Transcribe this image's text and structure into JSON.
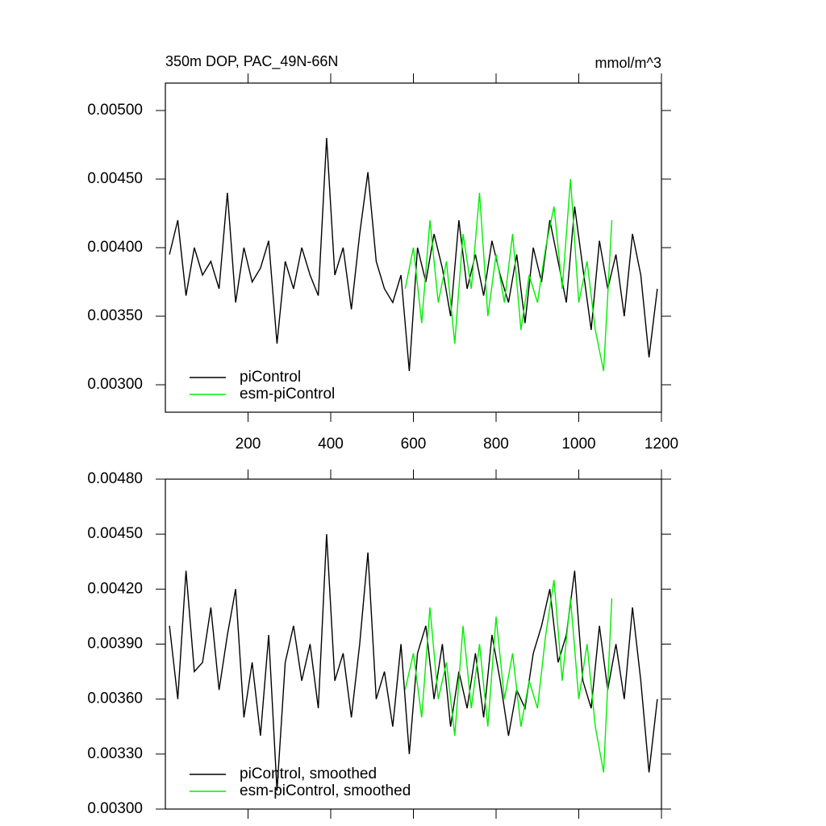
{
  "chart_data": [
    {
      "type": "line",
      "title": "350m DOP, PAC_49N-66N",
      "units": "mmol/m^3",
      "xlim": [
        0,
        1200
      ],
      "xticks": [
        200,
        400,
        600,
        800,
        1000,
        1200
      ],
      "ylim": [
        0.0028,
        0.0052
      ],
      "yticks": [
        {
          "value": 0.003,
          "label": "0.00300"
        },
        {
          "value": 0.0035,
          "label": "0.00350"
        },
        {
          "value": 0.004,
          "label": "0.00400"
        },
        {
          "value": 0.0045,
          "label": "0.00450"
        },
        {
          "value": 0.005,
          "label": "0.00500"
        }
      ],
      "legend": "lower left",
      "series": [
        {
          "name": "piControl",
          "color": "#000000",
          "x": [
            10,
            30,
            50,
            70,
            90,
            110,
            130,
            150,
            170,
            190,
            210,
            230,
            250,
            270,
            290,
            310,
            330,
            350,
            370,
            390,
            410,
            430,
            450,
            470,
            490,
            510,
            530,
            550,
            570,
            590,
            610,
            630,
            650,
            670,
            690,
            710,
            730,
            750,
            770,
            790,
            810,
            830,
            850,
            870,
            890,
            910,
            930,
            950,
            970,
            990,
            1010,
            1030,
            1050,
            1070,
            1090,
            1110,
            1130,
            1150,
            1170,
            1190
          ],
          "values": [
            0.00395,
            0.0042,
            0.00365,
            0.004,
            0.0038,
            0.0039,
            0.0037,
            0.0044,
            0.0036,
            0.004,
            0.00375,
            0.00385,
            0.00405,
            0.0033,
            0.0039,
            0.0037,
            0.004,
            0.0038,
            0.00365,
            0.0048,
            0.0038,
            0.004,
            0.00355,
            0.0041,
            0.00455,
            0.0039,
            0.0037,
            0.0036,
            0.0038,
            0.0031,
            0.004,
            0.00375,
            0.0041,
            0.00385,
            0.0035,
            0.0042,
            0.0037,
            0.00395,
            0.00365,
            0.00405,
            0.0038,
            0.0036,
            0.00395,
            0.00345,
            0.004,
            0.00375,
            0.0042,
            0.0039,
            0.0036,
            0.0043,
            0.00385,
            0.0034,
            0.00405,
            0.0037,
            0.00395,
            0.0035,
            0.0041,
            0.0038,
            0.0032,
            0.0037
          ]
        },
        {
          "name": "esm-piControl",
          "color": "#00ee00",
          "x": [
            580,
            600,
            620,
            640,
            660,
            680,
            700,
            720,
            740,
            760,
            780,
            800,
            820,
            840,
            860,
            880,
            900,
            920,
            940,
            960,
            980,
            1000,
            1020,
            1040,
            1060,
            1080
          ],
          "values": [
            0.0037,
            0.004,
            0.00345,
            0.0042,
            0.0036,
            0.0039,
            0.0033,
            0.0041,
            0.0037,
            0.0044,
            0.0035,
            0.00395,
            0.0036,
            0.0041,
            0.0034,
            0.0038,
            0.0036,
            0.004,
            0.0043,
            0.0037,
            0.0045,
            0.0036,
            0.0039,
            0.0034,
            0.0031,
            0.0042
          ]
        }
      ]
    },
    {
      "type": "line",
      "xlim": [
        0,
        1200
      ],
      "ylim": [
        0.003,
        0.0048
      ],
      "yticks": [
        {
          "value": 0.003,
          "label": "0.00300"
        },
        {
          "value": 0.0033,
          "label": "0.00330"
        },
        {
          "value": 0.0036,
          "label": "0.00360"
        },
        {
          "value": 0.0039,
          "label": "0.00390"
        },
        {
          "value": 0.0042,
          "label": "0.00420"
        },
        {
          "value": 0.0045,
          "label": "0.00450"
        },
        {
          "value": 0.0048,
          "label": "0.00480"
        }
      ],
      "legend": "lower left",
      "series": [
        {
          "name": "piControl, smoothed",
          "color": "#000000",
          "x": [
            10,
            30,
            50,
            70,
            90,
            110,
            130,
            150,
            170,
            190,
            210,
            230,
            250,
            270,
            290,
            310,
            330,
            350,
            370,
            390,
            410,
            430,
            450,
            470,
            490,
            510,
            530,
            550,
            570,
            590,
            610,
            630,
            650,
            670,
            690,
            710,
            730,
            750,
            770,
            790,
            810,
            830,
            850,
            870,
            890,
            910,
            930,
            950,
            970,
            990,
            1010,
            1030,
            1050,
            1070,
            1090,
            1110,
            1130,
            1150,
            1170,
            1190
          ],
          "values": [
            0.004,
            0.0036,
            0.0043,
            0.00375,
            0.0038,
            0.0041,
            0.00365,
            0.00395,
            0.0042,
            0.0035,
            0.0038,
            0.0034,
            0.00395,
            0.0031,
            0.0038,
            0.004,
            0.0037,
            0.0039,
            0.00355,
            0.0045,
            0.0037,
            0.00385,
            0.0035,
            0.0039,
            0.0044,
            0.0036,
            0.00375,
            0.00345,
            0.0039,
            0.0033,
            0.00385,
            0.004,
            0.0036,
            0.0039,
            0.00345,
            0.00375,
            0.00355,
            0.00385,
            0.0035,
            0.00395,
            0.0037,
            0.0034,
            0.00365,
            0.00355,
            0.00385,
            0.004,
            0.0042,
            0.0038,
            0.00395,
            0.0043,
            0.0037,
            0.00355,
            0.004,
            0.00365,
            0.0039,
            0.0036,
            0.0041,
            0.0037,
            0.0032,
            0.0036
          ]
        },
        {
          "name": "esm-piControl, smoothed",
          "color": "#00ee00",
          "x": [
            580,
            600,
            620,
            640,
            660,
            680,
            700,
            720,
            740,
            760,
            780,
            800,
            820,
            840,
            860,
            880,
            900,
            920,
            940,
            960,
            980,
            1000,
            1020,
            1040,
            1060,
            1080
          ],
          "values": [
            0.00365,
            0.00385,
            0.0035,
            0.0041,
            0.0036,
            0.0038,
            0.0034,
            0.004,
            0.00355,
            0.0039,
            0.00345,
            0.00405,
            0.0036,
            0.00385,
            0.00345,
            0.0037,
            0.00355,
            0.00395,
            0.00425,
            0.0037,
            0.00415,
            0.0036,
            0.0039,
            0.00345,
            0.0032,
            0.00415
          ]
        }
      ]
    }
  ]
}
